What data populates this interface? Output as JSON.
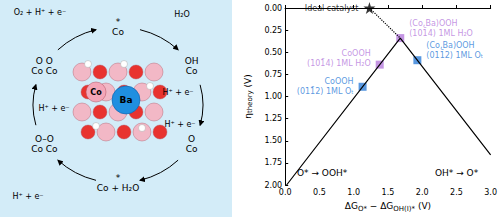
{
  "chart_data": {
    "type": "line",
    "xlabel": [
      {
        "text": "ΔG"
      },
      {
        "text": "O*",
        "sub": true
      },
      {
        "text": " − ΔG"
      },
      {
        "text": "OH(I)*",
        "sub": true
      },
      {
        "text": " (V)"
      }
    ],
    "ylabel": [
      {
        "text": "η"
      },
      {
        "text": "theory",
        "sub": true
      },
      {
        "text": " (V)"
      }
    ],
    "xlim": [
      0,
      3
    ],
    "xticks": [
      {
        "value": 0,
        "label": "0.0"
      },
      {
        "value": 0.5,
        "label": "0.5"
      },
      {
        "value": 1,
        "label": "1.0"
      },
      {
        "value": 1.5,
        "label": "1.5"
      },
      {
        "value": 2,
        "label": "2.0"
      },
      {
        "value": 2.5,
        "label": "2.5"
      },
      {
        "value": 3,
        "label": "3.0"
      }
    ],
    "ylim": [
      2,
      0
    ],
    "yticks": [
      {
        "value": 0,
        "label": "0.00"
      },
      {
        "value": 0.25,
        "label": "0.25"
      },
      {
        "value": 0.5,
        "label": "0.50"
      },
      {
        "value": 0.75,
        "label": "0.75"
      },
      {
        "value": 1,
        "label": "1.00"
      },
      {
        "value": 1.25,
        "label": "1.25"
      },
      {
        "value": 1.5,
        "label": "1.50"
      },
      {
        "value": 1.75,
        "label": "1.75"
      },
      {
        "value": 2,
        "label": "2.00"
      }
    ],
    "grid": false,
    "series": [
      {
        "type": "line",
        "color": "#000000",
        "line_style": "solid",
        "marker": "none",
        "x": [
          0.02,
          1.68,
          3.0
        ],
        "values": [
          2.0,
          0.34,
          1.66
        ]
      },
      {
        "type": "line",
        "color": "#000000",
        "line_style": "dotted",
        "marker": "none",
        "x": [
          1.23,
          1.68
        ],
        "values": [
          0,
          0.34
        ]
      },
      {
        "type": "scatter",
        "marker": "square",
        "x": [
          1.13,
          1.38,
          1.68,
          1.93
        ],
        "values": [
          0.89,
          0.64,
          0.34,
          0.59
        ],
        "colors": [
          "#2f7ed8",
          "#b57bdc",
          "#b57bdc",
          "#2f7ed8"
        ],
        "labels": [
          [
            "CoOOH",
            "(011̄2) 1ML Oₜ"
          ],
          [
            "CoOOH",
            "(101̄4) 1ML H₂O"
          ],
          [
            "(Co,Ba)OOH",
            "(101̄4) 1ML H₂O"
          ],
          [
            "(Co,Ba)OOH",
            "(011̄2) 1ML Oₜ"
          ]
        ]
      },
      {
        "type": "scatter",
        "marker": "star",
        "color": "#000000",
        "x": [
          1.23
        ],
        "values": [
          0
        ],
        "labels": [
          [
            "Ideal catalyst"
          ]
        ]
      }
    ],
    "annotations": [
      "O* → OOH*",
      "OH* → O*"
    ]
  },
  "diagram": {
    "species": [
      [
        "*",
        "Co"
      ],
      [
        "OH",
        "Co"
      ],
      [
        "O",
        "Co"
      ],
      [
        "*",
        "Co + H₂O"
      ],
      [
        "O–O",
        "Co  Co"
      ],
      [
        "O  O",
        "Co  Co"
      ]
    ],
    "reagents": [
      "O₂ + H⁺ + e⁻",
      "H₂O",
      "H⁺ + e⁻",
      "H⁺ + e⁻",
      "H⁺ + e⁻",
      "H⁺ + e⁻"
    ],
    "structure_labels": [
      "Co",
      "Ba"
    ]
  }
}
